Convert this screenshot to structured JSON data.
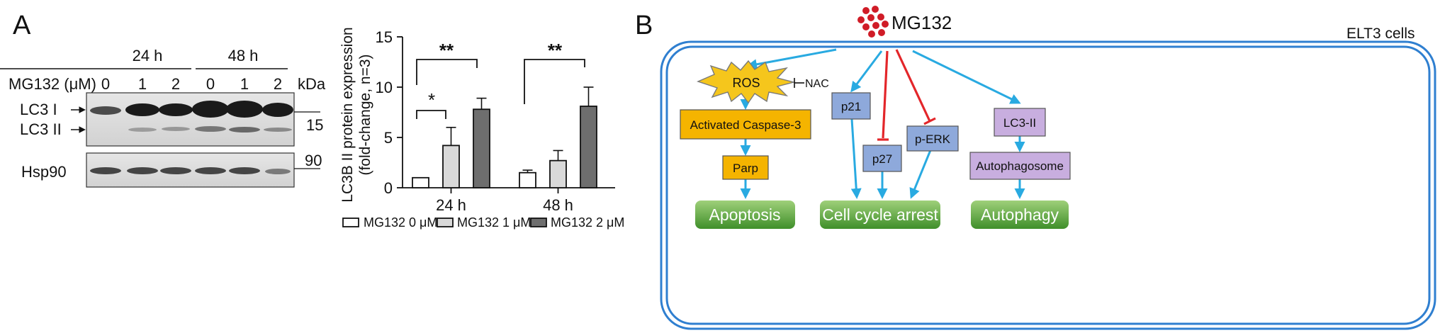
{
  "panel_a": {
    "label": "A",
    "blot": {
      "time_labels": [
        "24 h",
        "48 h"
      ],
      "treatment_label": "MG132 (μM)",
      "doses": [
        "0",
        "1",
        "2",
        "0",
        "1",
        "2"
      ],
      "kda_label": "kDa",
      "band_labels": [
        "LC3 I",
        "LC3 II",
        "Hsp90"
      ],
      "markers": [
        "15",
        "90"
      ]
    },
    "chart": {
      "ylabel_line1": "LC3B II protein expression",
      "ylabel_line2": "(fold-change, n=3)",
      "sig_labels": [
        "*",
        "**",
        "**"
      ],
      "legend": [
        "MG132 0 μM",
        "MG132 1 μM",
        "MG132 2 μM"
      ]
    }
  },
  "chart_data": {
    "type": "bar",
    "categories": [
      "24 h",
      "48 h"
    ],
    "series": [
      {
        "name": "MG132 0 μM",
        "values": [
          1.0,
          1.5
        ],
        "errors": [
          0.0,
          0.25
        ],
        "color": "#ffffff"
      },
      {
        "name": "MG132 1 μM",
        "values": [
          4.2,
          2.7
        ],
        "errors": [
          1.8,
          1.0
        ],
        "color": "#d9d9d9"
      },
      {
        "name": "MG132 2 μM",
        "values": [
          7.8,
          8.1
        ],
        "errors": [
          1.1,
          1.9
        ],
        "color": "#6e6e6e"
      }
    ],
    "ylim": [
      0,
      15
    ],
    "yticks": [
      "0",
      "5",
      "10",
      "15"
    ],
    "ylabel": "LC3B II protein expression (fold-change, n=3)",
    "legend_position": "bottom",
    "grid": false
  },
  "panel_b": {
    "label": "B",
    "drug": "MG132",
    "cell_line": "ELT3 cells",
    "nodes": {
      "ros": "ROS",
      "nac": "NAC",
      "caspase": "Activated Caspase-3",
      "parp": "Parp",
      "p21": "p21",
      "p27": "p27",
      "perk": "p-ERK",
      "lc3": "LC3-II",
      "autophagosome": "Autophagosome"
    },
    "outcomes": [
      "Apoptosis",
      "Cell cycle arrest",
      "Autophagy"
    ],
    "colors": {
      "activate": "#29aae1",
      "inhibit": "#e3262a",
      "border": "#2f7fd0",
      "orange": "#f5b400",
      "blue": "#8ea9db",
      "purple": "#c8aedf",
      "green": "#4f9b3a"
    }
  }
}
